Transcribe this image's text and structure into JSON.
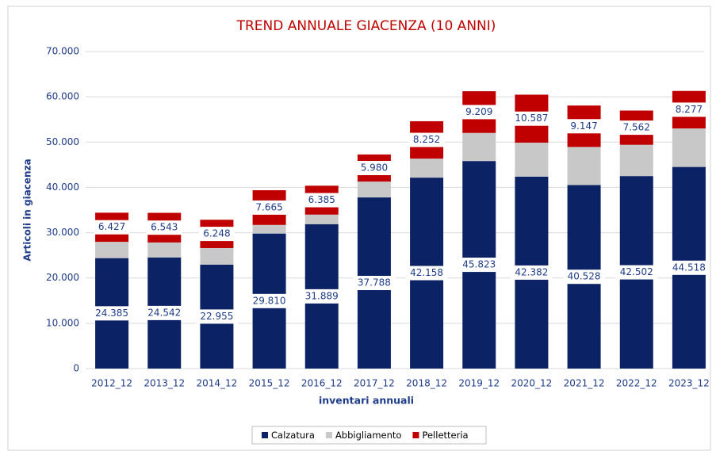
{
  "chart_data": {
    "type": "stacked_bar",
    "title": "TREND ANNUALE GIACENZA (10 ANNI)",
    "x_label": "inventari annuali",
    "y_label": "Articoli in giacenza",
    "categories": [
      "2012_12",
      "2013_12",
      "2014_12",
      "2015_12",
      "2016_12",
      "2017_12",
      "2018_12",
      "2019_12",
      "2020_12",
      "2021_12",
      "2022_12",
      "2023_12"
    ],
    "series": [
      {
        "name": "Calzatura",
        "color": "#0b2265",
        "values": [
          24385,
          24542,
          22955,
          29810,
          31889,
          37788,
          42158,
          45823,
          42382,
          40528,
          42502,
          44518
        ],
        "value_labels": [
          "24.385",
          "24.542",
          "22.955",
          "29.810",
          "31.889",
          "37.788",
          "42.158",
          "45.823",
          "42.382",
          "40.528",
          "42.502",
          "44.518"
        ]
      },
      {
        "name": "Abbigliamento",
        "color": "#c8c8c8",
        "values": [
          3600,
          3300,
          3650,
          1900,
          2100,
          3500,
          4200,
          6200,
          7500,
          8400,
          6900,
          8500
        ]
      },
      {
        "name": "Pelletteria",
        "color": "#c00000",
        "values": [
          6427,
          6543,
          6248,
          7665,
          6385,
          5980,
          8252,
          9209,
          10587,
          9147,
          7562,
          8277
        ],
        "value_labels": [
          "6.427",
          "6.543",
          "6.248",
          "7.665",
          "6.385",
          "5.980",
          "8.252",
          "9.209",
          "10.587",
          "9.147",
          "7.562",
          "8.277"
        ]
      }
    ],
    "ylim": [
      0,
      70000
    ],
    "yticks": [
      0,
      {
        "value": 10000,
        "label": "10.000"
      },
      {
        "value": 20000,
        "label": "20.000"
      },
      {
        "value": 30000,
        "label": "30.000"
      },
      {
        "value": 40000,
        "label": "40.000"
      },
      {
        "value": 50000,
        "label": "50.000"
      },
      {
        "value": 60000,
        "label": "60.000"
      },
      {
        "value": 70000,
        "label": "70.000"
      }
    ],
    "grid": true,
    "legend": "bottom"
  }
}
